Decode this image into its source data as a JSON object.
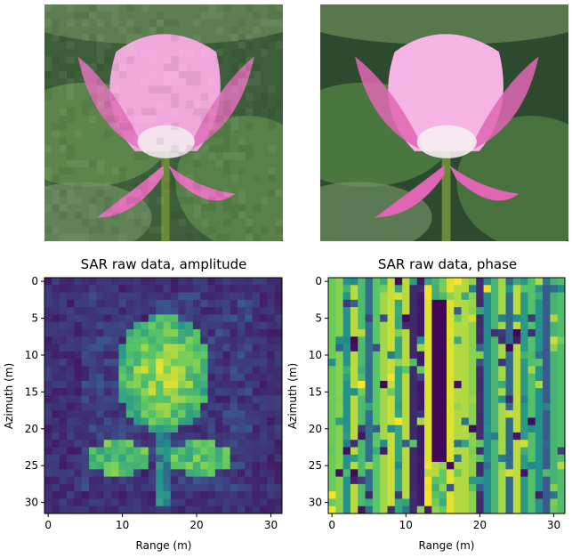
{
  "chart_data": [
    {
      "type": "image",
      "title": "",
      "content": "low-resolution pink lotus flower on green leaves background",
      "palette": {
        "petal": "#f0a8dc",
        "petal_dark": "#e070b8",
        "leaf": "#5e8a4c",
        "leaf_dark": "#3c5e3a",
        "center": "#f4e8ee"
      }
    },
    {
      "type": "image",
      "title": "",
      "content": "high-resolution pink lotus flower on green leaves background",
      "palette": {
        "petal": "#f6b4e4",
        "petal_dark": "#e066b4",
        "leaf": "#4e7c42",
        "leaf_dark": "#2e4a2e",
        "center": "#f6eef0"
      }
    },
    {
      "type": "heatmap",
      "title": "SAR raw data, amplitude",
      "xlabel": "Range (m)",
      "ylabel": "Azimuth (m)",
      "xlim": [
        -0.5,
        31.5
      ],
      "ylim": [
        31.5,
        -0.5
      ],
      "xticks": [
        "0",
        "10",
        "20",
        "30"
      ],
      "yticks": [
        "0",
        "5",
        "10",
        "15",
        "20",
        "25",
        "30"
      ],
      "colormap": "viridis",
      "grid_size": [
        32,
        32
      ],
      "description": "bright flower-shaped region centered around range 10-22, azimuth 4-27 on dark background"
    },
    {
      "type": "heatmap",
      "title": "SAR raw data, phase",
      "xlabel": "Range (m)",
      "ylabel": "Azimuth (m)",
      "xlim": [
        -0.5,
        31.5
      ],
      "ylim": [
        31.5,
        -0.5
      ],
      "xticks": [
        "0",
        "10",
        "20",
        "30"
      ],
      "yticks": [
        "0",
        "5",
        "10",
        "15",
        "20",
        "25",
        "30"
      ],
      "colormap": "viridis",
      "grid_size": [
        32,
        32
      ],
      "description": "vertical stripes of wrapped phase values with a dark elongated region near range 13-17"
    }
  ]
}
